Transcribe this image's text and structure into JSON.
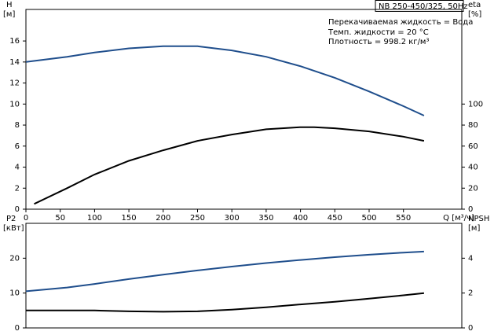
{
  "header": {
    "title": "NB 250-450/325, 50Hz",
    "notes": [
      "Перекачиваемая жидкость = Вода",
      "Темп. жидкости = 20 °C",
      "Плотность = 998.2 кг/м³"
    ]
  },
  "chart_data": [
    {
      "type": "line",
      "y_label": "H",
      "y_unit": "[м]",
      "y2_label": "eta",
      "y2_unit": "[%]",
      "x_label": "Q [м³/ч]",
      "xlim": [
        0,
        635
      ],
      "xticks": [
        0,
        50,
        100,
        150,
        200,
        250,
        300,
        350,
        400,
        450,
        500,
        550
      ],
      "ylim": [
        0,
        19
      ],
      "yticks": [
        0,
        2,
        4,
        6,
        8,
        10,
        12,
        14,
        16
      ],
      "y2lim": [
        0,
        190
      ],
      "y2ticks": [
        0,
        20,
        40,
        60,
        80,
        100
      ],
      "series": [
        {
          "color": "#1f4e8c",
          "axis": "y",
          "x": [
            0,
            60,
            100,
            150,
            200,
            250,
            300,
            350,
            400,
            450,
            500,
            550,
            580
          ],
          "values": [
            14,
            14.5,
            14.9,
            15.3,
            15.5,
            15.5,
            15.1,
            14.5,
            13.6,
            12.5,
            11.2,
            9.8,
            8.9
          ]
        },
        {
          "color": "#000000",
          "axis": "y2",
          "x": [
            12,
            60,
            100,
            150,
            200,
            250,
            300,
            350,
            400,
            420,
            450,
            500,
            550,
            580
          ],
          "values": [
            5,
            20,
            33,
            46,
            56,
            65,
            71,
            76,
            78,
            78,
            77,
            74,
            69,
            65
          ]
        }
      ]
    },
    {
      "type": "line",
      "y_label": "P2",
      "y_unit": "[кВт]",
      "y2_label": "NPSH",
      "y2_unit": "[м]",
      "xlim": [
        0,
        635
      ],
      "ylim": [
        0,
        30
      ],
      "yticks": [
        0,
        10,
        20
      ],
      "y2lim": [
        0,
        6
      ],
      "y2ticks": [
        0,
        2,
        4
      ],
      "series": [
        {
          "color": "#1f4e8c",
          "axis": "y",
          "x": [
            0,
            60,
            100,
            150,
            200,
            250,
            300,
            350,
            400,
            450,
            500,
            550,
            580
          ],
          "values": [
            10.5,
            11.6,
            12.6,
            14,
            15.3,
            16.5,
            17.6,
            18.6,
            19.5,
            20.3,
            21,
            21.6,
            21.9
          ]
        },
        {
          "color": "#000000",
          "axis": "y2",
          "x": [
            0,
            50,
            100,
            150,
            200,
            250,
            300,
            350,
            400,
            450,
            500,
            550,
            580
          ],
          "values": [
            1.0,
            1.0,
            1.0,
            0.95,
            0.93,
            0.95,
            1.05,
            1.18,
            1.35,
            1.5,
            1.68,
            1.87,
            2.0
          ]
        }
      ]
    }
  ]
}
